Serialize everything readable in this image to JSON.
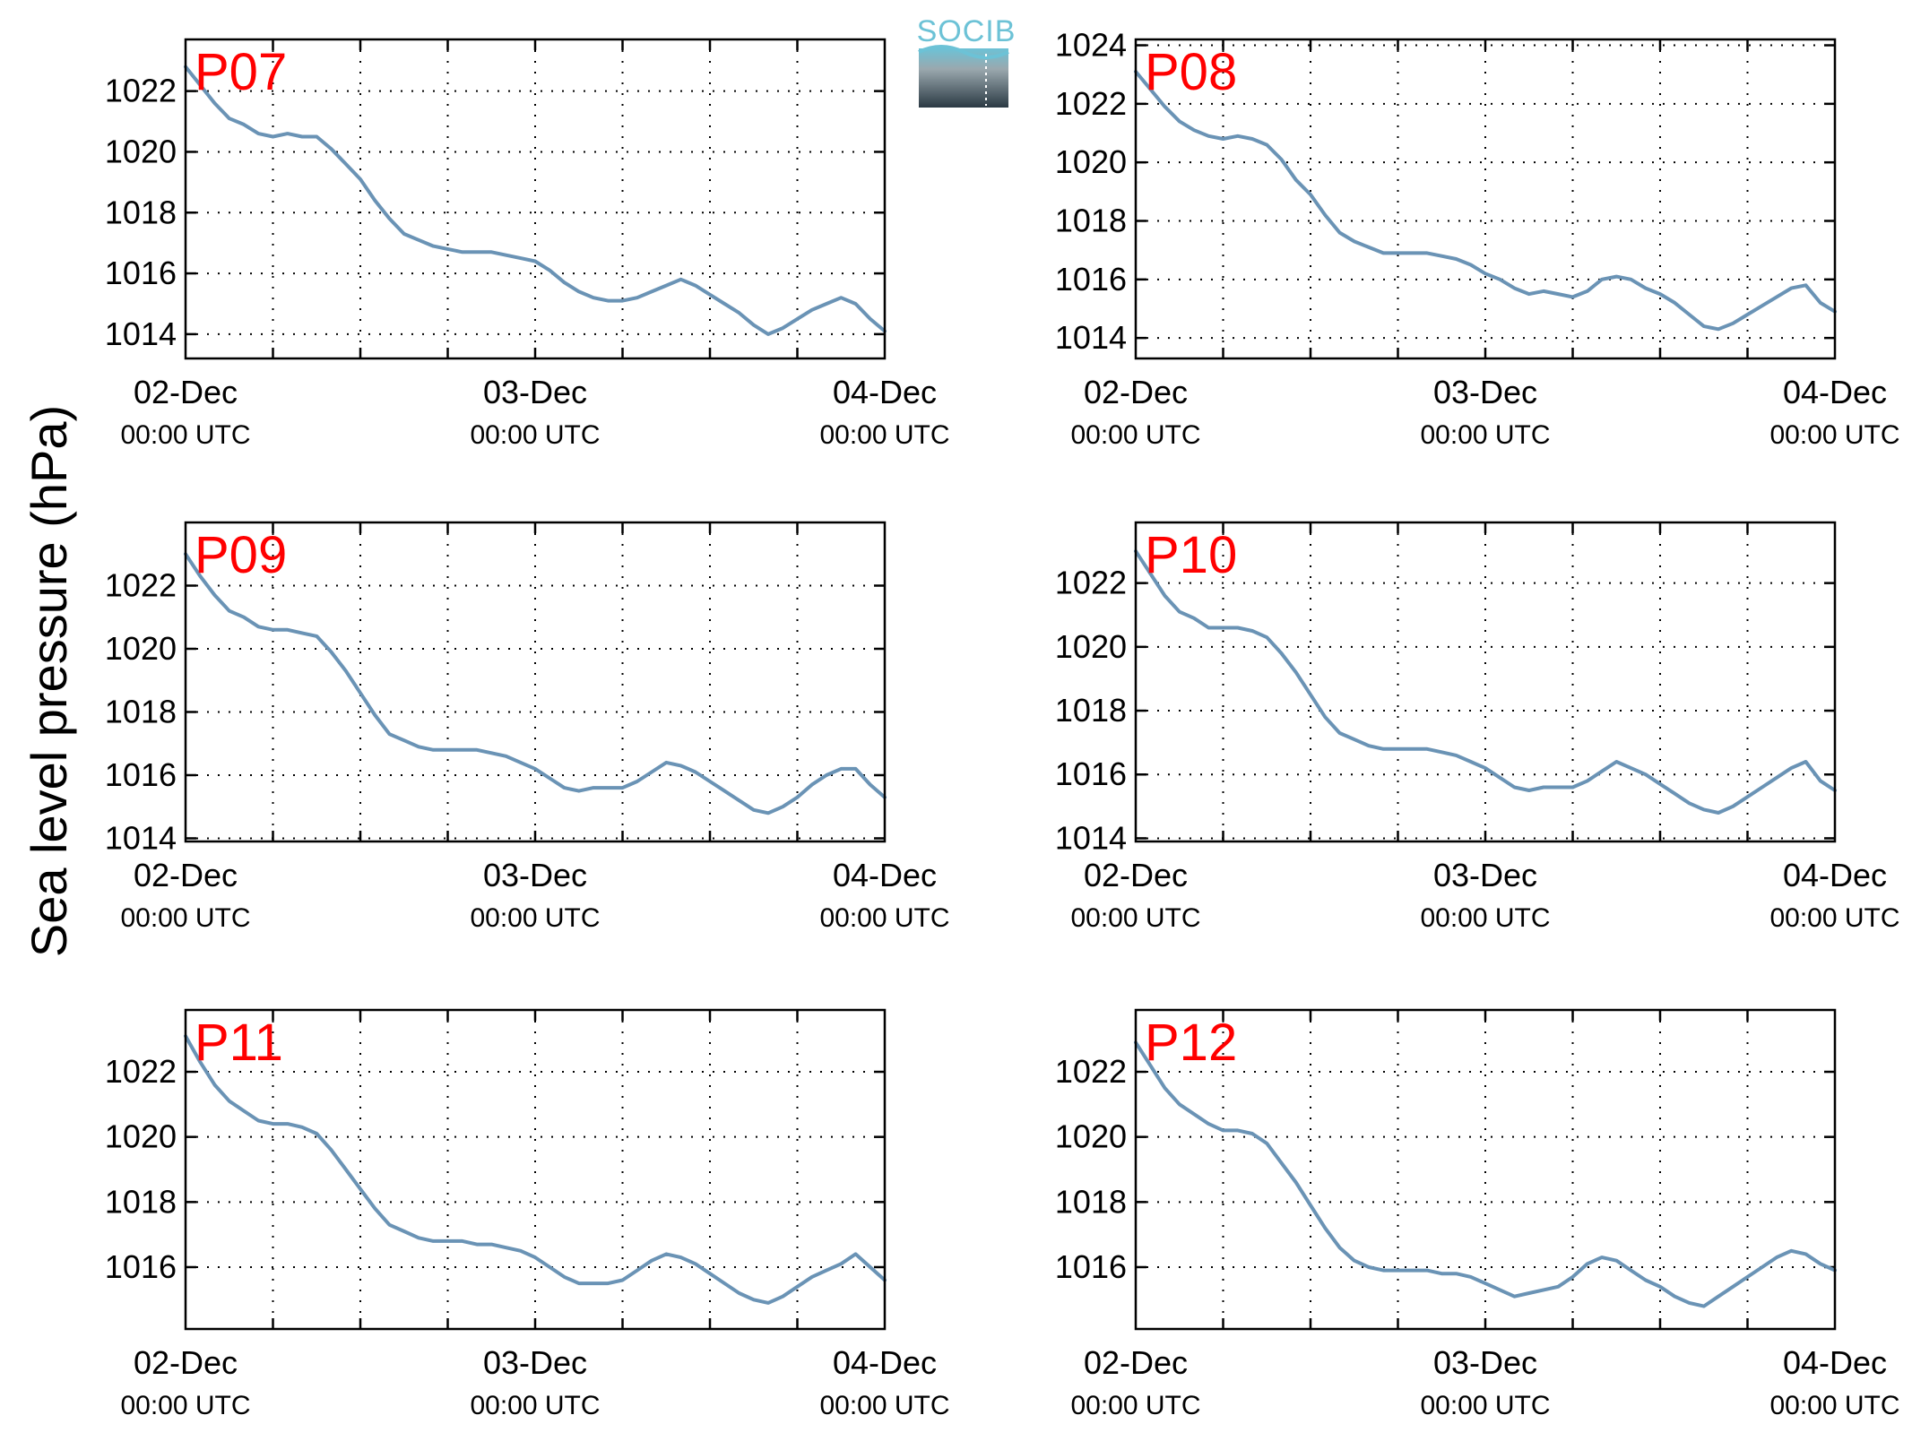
{
  "figure": {
    "ylabel": "Sea level pressure (hPa)",
    "logo_text": "SOCIB",
    "colors": {
      "line": "#6a93b5",
      "label": "#ff0000",
      "logo_top": "#6cc2d6",
      "logo_bottom": "#2b3a44"
    }
  },
  "chart_data": [
    {
      "type": "line",
      "label": "P07",
      "ylim": [
        1013.2,
        1023.7
      ],
      "yticks": [
        1014,
        1016,
        1018,
        1020,
        1022
      ],
      "xlim": [
        0,
        48
      ],
      "x_minor_step": 6,
      "xticks": [
        {
          "x": 0,
          "date": "02-Dec",
          "time": "00:00 UTC"
        },
        {
          "x": 24,
          "date": "03-Dec",
          "time": "00:00 UTC"
        },
        {
          "x": 48,
          "date": "04-Dec",
          "time": "00:00 UTC"
        }
      ],
      "series": [
        {
          "x": [
            0,
            1,
            2,
            3,
            4,
            5,
            6,
            7,
            8,
            9,
            10,
            11,
            12,
            13,
            14,
            15,
            16,
            17,
            18,
            19,
            20,
            21,
            22,
            23,
            24,
            25,
            26,
            27,
            28,
            29,
            30,
            31,
            32,
            33,
            34,
            35,
            36,
            37,
            38,
            39,
            40,
            41,
            42,
            43,
            44,
            45,
            46,
            47,
            48
          ],
          "y": [
            1022.8,
            1022.2,
            1021.6,
            1021.1,
            1020.9,
            1020.6,
            1020.5,
            1020.6,
            1020.5,
            1020.5,
            1020.1,
            1019.6,
            1019.1,
            1018.4,
            1017.8,
            1017.3,
            1017.1,
            1016.9,
            1016.8,
            1016.7,
            1016.7,
            1016.7,
            1016.6,
            1016.5,
            1016.4,
            1016.1,
            1015.7,
            1015.4,
            1015.2,
            1015.1,
            1015.1,
            1015.2,
            1015.4,
            1015.6,
            1015.8,
            1015.6,
            1015.3,
            1015.0,
            1014.7,
            1014.3,
            1014.0,
            1014.2,
            1014.5,
            1014.8,
            1015.0,
            1015.2,
            1015.0,
            1014.5,
            1014.1
          ]
        }
      ]
    },
    {
      "type": "line",
      "label": "P08",
      "ylim": [
        1013.3,
        1024.2
      ],
      "yticks": [
        1014,
        1016,
        1018,
        1020,
        1022,
        1024
      ],
      "xlim": [
        0,
        48
      ],
      "x_minor_step": 6,
      "xticks": [
        {
          "x": 0,
          "date": "02-Dec",
          "time": "00:00 UTC"
        },
        {
          "x": 24,
          "date": "03-Dec",
          "time": "00:00 UTC"
        },
        {
          "x": 48,
          "date": "04-Dec",
          "time": "00:00 UTC"
        }
      ],
      "series": [
        {
          "x": [
            0,
            1,
            2,
            3,
            4,
            5,
            6,
            7,
            8,
            9,
            10,
            11,
            12,
            13,
            14,
            15,
            16,
            17,
            18,
            19,
            20,
            21,
            22,
            23,
            24,
            25,
            26,
            27,
            28,
            29,
            30,
            31,
            32,
            33,
            34,
            35,
            36,
            37,
            38,
            39,
            40,
            41,
            42,
            43,
            44,
            45,
            46,
            47,
            48
          ],
          "y": [
            1023.1,
            1022.5,
            1021.9,
            1021.4,
            1021.1,
            1020.9,
            1020.8,
            1020.9,
            1020.8,
            1020.6,
            1020.1,
            1019.4,
            1018.9,
            1018.2,
            1017.6,
            1017.3,
            1017.1,
            1016.9,
            1016.9,
            1016.9,
            1016.9,
            1016.8,
            1016.7,
            1016.5,
            1016.2,
            1016.0,
            1015.7,
            1015.5,
            1015.6,
            1015.5,
            1015.4,
            1015.6,
            1016.0,
            1016.1,
            1016.0,
            1015.7,
            1015.5,
            1015.2,
            1014.8,
            1014.4,
            1014.3,
            1014.5,
            1014.8,
            1015.1,
            1015.4,
            1015.7,
            1015.8,
            1015.2,
            1014.9
          ]
        }
      ]
    },
    {
      "type": "line",
      "label": "P09",
      "ylim": [
        1013.9,
        1024.0
      ],
      "yticks": [
        1014,
        1016,
        1018,
        1020,
        1022
      ],
      "xlim": [
        0,
        48
      ],
      "x_minor_step": 6,
      "xticks": [
        {
          "x": 0,
          "date": "02-Dec",
          "time": "00:00 UTC"
        },
        {
          "x": 24,
          "date": "03-Dec",
          "time": "00:00 UTC"
        },
        {
          "x": 48,
          "date": "04-Dec",
          "time": "00:00 UTC"
        }
      ],
      "series": [
        {
          "x": [
            0,
            1,
            2,
            3,
            4,
            5,
            6,
            7,
            8,
            9,
            10,
            11,
            12,
            13,
            14,
            15,
            16,
            17,
            18,
            19,
            20,
            21,
            22,
            23,
            24,
            25,
            26,
            27,
            28,
            29,
            30,
            31,
            32,
            33,
            34,
            35,
            36,
            37,
            38,
            39,
            40,
            41,
            42,
            43,
            44,
            45,
            46,
            47,
            48
          ],
          "y": [
            1023.0,
            1022.3,
            1021.7,
            1021.2,
            1021.0,
            1020.7,
            1020.6,
            1020.6,
            1020.5,
            1020.4,
            1019.9,
            1019.3,
            1018.6,
            1017.9,
            1017.3,
            1017.1,
            1016.9,
            1016.8,
            1016.8,
            1016.8,
            1016.8,
            1016.7,
            1016.6,
            1016.4,
            1016.2,
            1015.9,
            1015.6,
            1015.5,
            1015.6,
            1015.6,
            1015.6,
            1015.8,
            1016.1,
            1016.4,
            1016.3,
            1016.1,
            1015.8,
            1015.5,
            1015.2,
            1014.9,
            1014.8,
            1015.0,
            1015.3,
            1015.7,
            1016.0,
            1016.2,
            1016.2,
            1015.7,
            1015.3
          ]
        }
      ]
    },
    {
      "type": "line",
      "label": "P10",
      "ylim": [
        1013.9,
        1023.9
      ],
      "yticks": [
        1014,
        1016,
        1018,
        1020,
        1022
      ],
      "xlim": [
        0,
        48
      ],
      "x_minor_step": 6,
      "xticks": [
        {
          "x": 0,
          "date": "02-Dec",
          "time": "00:00 UTC"
        },
        {
          "x": 24,
          "date": "03-Dec",
          "time": "00:00 UTC"
        },
        {
          "x": 48,
          "date": "04-Dec",
          "time": "00:00 UTC"
        }
      ],
      "series": [
        {
          "x": [
            0,
            1,
            2,
            3,
            4,
            5,
            6,
            7,
            8,
            9,
            10,
            11,
            12,
            13,
            14,
            15,
            16,
            17,
            18,
            19,
            20,
            21,
            22,
            23,
            24,
            25,
            26,
            27,
            28,
            29,
            30,
            31,
            32,
            33,
            34,
            35,
            36,
            37,
            38,
            39,
            40,
            41,
            42,
            43,
            44,
            45,
            46,
            47,
            48
          ],
          "y": [
            1023.0,
            1022.3,
            1021.6,
            1021.1,
            1020.9,
            1020.6,
            1020.6,
            1020.6,
            1020.5,
            1020.3,
            1019.8,
            1019.2,
            1018.5,
            1017.8,
            1017.3,
            1017.1,
            1016.9,
            1016.8,
            1016.8,
            1016.8,
            1016.8,
            1016.7,
            1016.6,
            1016.4,
            1016.2,
            1015.9,
            1015.6,
            1015.5,
            1015.6,
            1015.6,
            1015.6,
            1015.8,
            1016.1,
            1016.4,
            1016.2,
            1016.0,
            1015.7,
            1015.4,
            1015.1,
            1014.9,
            1014.8,
            1015.0,
            1015.3,
            1015.6,
            1015.9,
            1016.2,
            1016.4,
            1015.8,
            1015.5
          ]
        }
      ]
    },
    {
      "type": "line",
      "label": "P11",
      "ylim": [
        1014.1,
        1023.9
      ],
      "yticks": [
        1016,
        1018,
        1020,
        1022
      ],
      "xlim": [
        0,
        48
      ],
      "x_minor_step": 6,
      "xticks": [
        {
          "x": 0,
          "date": "02-Dec",
          "time": "00:00 UTC"
        },
        {
          "x": 24,
          "date": "03-Dec",
          "time": "00:00 UTC"
        },
        {
          "x": 48,
          "date": "04-Dec",
          "time": "00:00 UTC"
        }
      ],
      "series": [
        {
          "x": [
            0,
            1,
            2,
            3,
            4,
            5,
            6,
            7,
            8,
            9,
            10,
            11,
            12,
            13,
            14,
            15,
            16,
            17,
            18,
            19,
            20,
            21,
            22,
            23,
            24,
            25,
            26,
            27,
            28,
            29,
            30,
            31,
            32,
            33,
            34,
            35,
            36,
            37,
            38,
            39,
            40,
            41,
            42,
            43,
            44,
            45,
            46,
            47,
            48
          ],
          "y": [
            1023.1,
            1022.3,
            1021.6,
            1021.1,
            1020.8,
            1020.5,
            1020.4,
            1020.4,
            1020.3,
            1020.1,
            1019.6,
            1019.0,
            1018.4,
            1017.8,
            1017.3,
            1017.1,
            1016.9,
            1016.8,
            1016.8,
            1016.8,
            1016.7,
            1016.7,
            1016.6,
            1016.5,
            1016.3,
            1016.0,
            1015.7,
            1015.5,
            1015.5,
            1015.5,
            1015.6,
            1015.9,
            1016.2,
            1016.4,
            1016.3,
            1016.1,
            1015.8,
            1015.5,
            1015.2,
            1015.0,
            1014.9,
            1015.1,
            1015.4,
            1015.7,
            1015.9,
            1016.1,
            1016.4,
            1016.0,
            1015.6
          ]
        }
      ]
    },
    {
      "type": "line",
      "label": "P12",
      "ylim": [
        1014.1,
        1023.9
      ],
      "yticks": [
        1016,
        1018,
        1020,
        1022
      ],
      "xlim": [
        0,
        48
      ],
      "x_minor_step": 6,
      "xticks": [
        {
          "x": 0,
          "date": "02-Dec",
          "time": "00:00 UTC"
        },
        {
          "x": 24,
          "date": "03-Dec",
          "time": "00:00 UTC"
        },
        {
          "x": 48,
          "date": "04-Dec",
          "time": "00:00 UTC"
        }
      ],
      "series": [
        {
          "x": [
            0,
            1,
            2,
            3,
            4,
            5,
            6,
            7,
            8,
            9,
            10,
            11,
            12,
            13,
            14,
            15,
            16,
            17,
            18,
            19,
            20,
            21,
            22,
            23,
            24,
            25,
            26,
            27,
            28,
            29,
            30,
            31,
            32,
            33,
            34,
            35,
            36,
            37,
            38,
            39,
            40,
            41,
            42,
            43,
            44,
            45,
            46,
            47,
            48
          ],
          "y": [
            1022.9,
            1022.2,
            1021.5,
            1021.0,
            1020.7,
            1020.4,
            1020.2,
            1020.2,
            1020.1,
            1019.8,
            1019.2,
            1018.6,
            1017.9,
            1017.2,
            1016.6,
            1016.2,
            1016.0,
            1015.9,
            1015.9,
            1015.9,
            1015.9,
            1015.8,
            1015.8,
            1015.7,
            1015.5,
            1015.3,
            1015.1,
            1015.2,
            1015.3,
            1015.4,
            1015.7,
            1016.1,
            1016.3,
            1016.2,
            1015.9,
            1015.6,
            1015.4,
            1015.1,
            1014.9,
            1014.8,
            1015.1,
            1015.4,
            1015.7,
            1016.0,
            1016.3,
            1016.5,
            1016.4,
            1016.1,
            1015.9
          ]
        }
      ]
    }
  ]
}
